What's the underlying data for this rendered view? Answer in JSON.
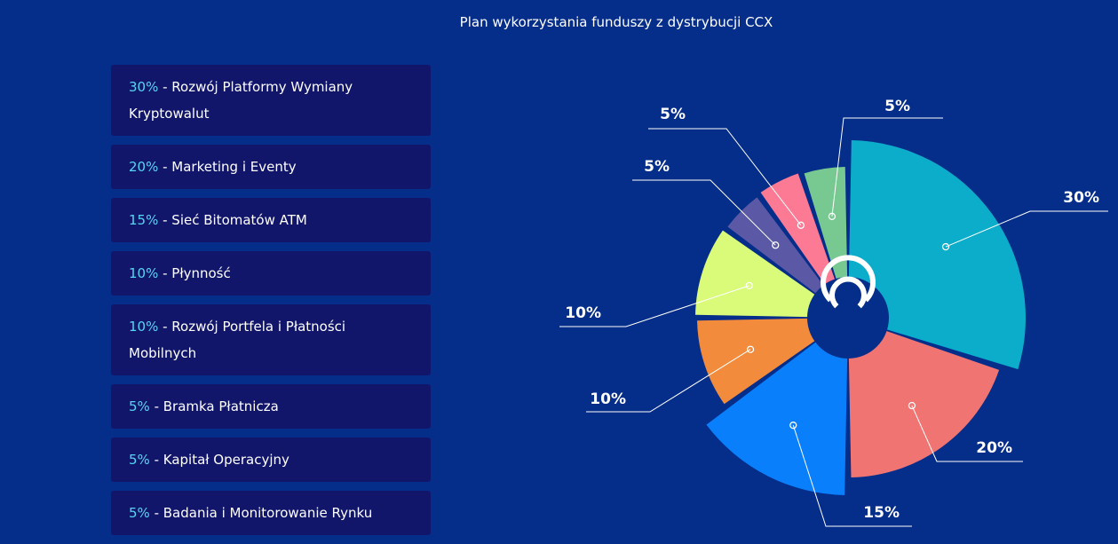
{
  "title": "Plan wykorzystania funduszy z dystrybucji CCX",
  "legend_items": [
    {
      "pct": "30%",
      "text": " - Rozwój Platformy Wymiany Kryptowalut"
    },
    {
      "pct": "20%",
      "text": " - Marketing i Eventy"
    },
    {
      "pct": "15%",
      "text": " - Sieć Bitomatów ATM"
    },
    {
      "pct": "10%",
      "text": " - Płynność"
    },
    {
      "pct": "10%",
      "text": " - Rozwój Portfela i Płatności Mobilnych"
    },
    {
      "pct": "5%",
      "text": " - Bramka Płatnicza"
    },
    {
      "pct": "5%",
      "text": " - Kapitał Operacyjny"
    },
    {
      "pct": "5%",
      "text": " - Badania i Monitorowanie Rynku"
    }
  ],
  "colors": {
    "background": "#052d8a",
    "panel": "#11166a",
    "accent_pct": "#55d6f2",
    "center_logo": "#052d8a"
  },
  "chart_data": {
    "type": "pie",
    "title": "Plan wykorzystania funduszy z dystrybucji CCX",
    "categories": [
      "Rozwój Platformy Wymiany Kryptowalut",
      "Marketing i Eventy",
      "Sieć Bitomatów ATM",
      "Płynność",
      "Rozwój Portfela i Płatności Mobilnych",
      "Bramka Płatnicza",
      "Kapitał Operacyjny",
      "Badania i Monitorowanie Rynku"
    ],
    "values": [
      30,
      20,
      15,
      10,
      10,
      5,
      5,
      5
    ],
    "labels": [
      "30%",
      "20%",
      "15%",
      "10%",
      "10%",
      "5%",
      "5%",
      "5%"
    ],
    "colors": [
      "#0cadca",
      "#f07572",
      "#0a7ffb",
      "#f28b3c",
      "#dafb7a",
      "#78c892",
      "#5b59a6",
      "#fd7a95"
    ],
    "legend_position": "left"
  }
}
